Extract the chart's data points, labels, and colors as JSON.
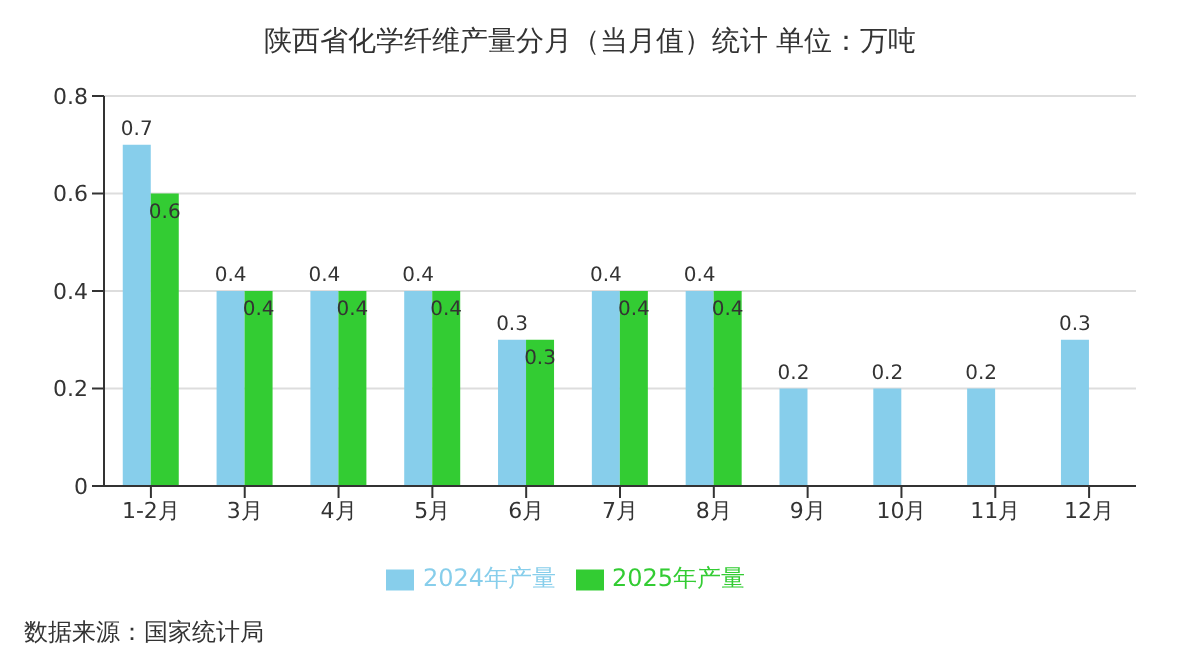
{
  "chart_data": {
    "type": "bar",
    "title": "陕西省化学纤维产量分月（当月值）统计  单位：万吨",
    "categories": [
      "1-2月",
      "3月",
      "4月",
      "5月",
      "6月",
      "7月",
      "8月",
      "9月",
      "10月",
      "11月",
      "12月"
    ],
    "series": [
      {
        "name": "2024年产量",
        "color": "#87ceeb",
        "values": [
          0.7,
          0.4,
          0.4,
          0.4,
          0.3,
          0.4,
          0.4,
          0.2,
          0.2,
          0.2,
          0.3
        ]
      },
      {
        "name": "2025年产量",
        "color": "#33cc33",
        "values": [
          0.6,
          0.4,
          0.4,
          0.4,
          0.3,
          0.4,
          0.4,
          null,
          null,
          null,
          null
        ]
      }
    ],
    "ylim": [
      0,
      0.8
    ],
    "yticks": [
      0,
      0.2,
      0.4,
      0.6,
      0.8
    ],
    "grid": "y",
    "legend": "bottom",
    "data_labels": true,
    "annotations": [
      "数据来源：国家统计局"
    ]
  }
}
